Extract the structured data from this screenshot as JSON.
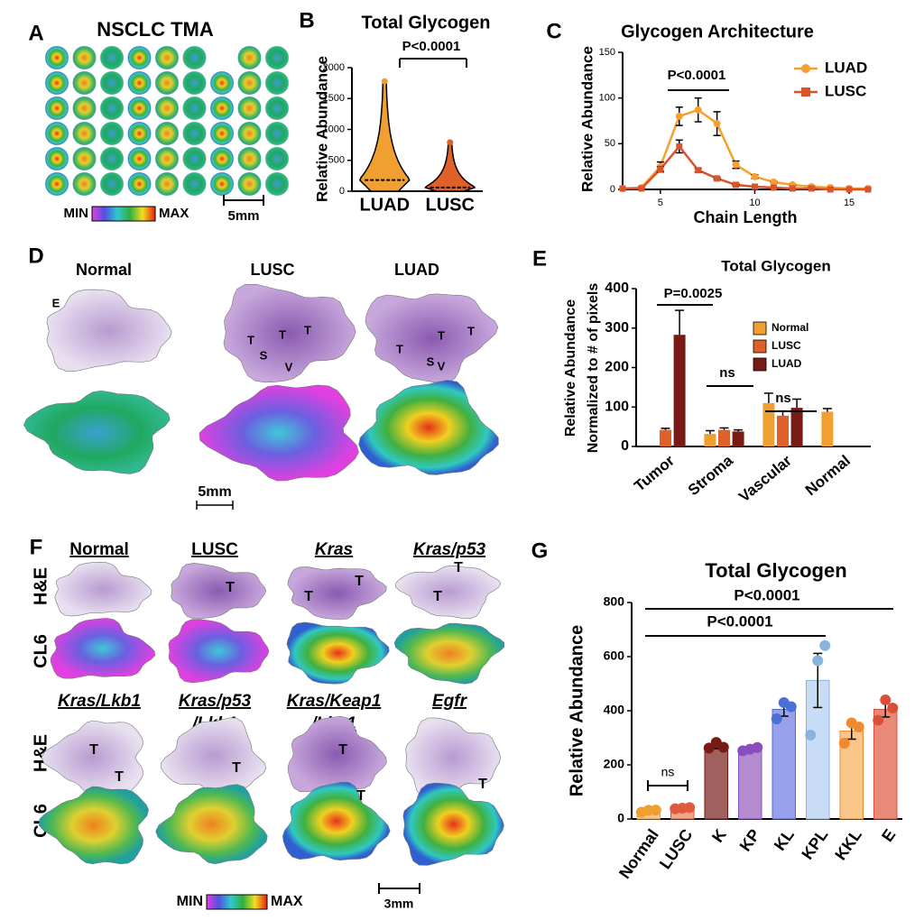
{
  "panel_a": {
    "letter": "A",
    "title": "NSCLC TMA",
    "colorbar_min": "MIN",
    "colorbar_max": "MAX",
    "scale": "5mm"
  },
  "panel_d": {
    "letter": "D",
    "columns": [
      "Normal",
      "LUSC",
      "LUAD"
    ],
    "tissue_labels": [
      "E",
      "T",
      "T",
      "T",
      "S",
      "V",
      "T",
      "T",
      "T",
      "S",
      "V"
    ],
    "scale": "5mm"
  },
  "panel_f": {
    "letter": "F",
    "columns": [
      [
        "Normal"
      ],
      [
        "LUSC"
      ],
      [
        "Kras"
      ],
      [
        "Kras/p53"
      ],
      [
        "Kras/Lkb1"
      ],
      [
        "Kras/p53",
        "/Lkb1"
      ],
      [
        "Kras/Keap1",
        "/Lkb1"
      ],
      [
        "Egfr"
      ]
    ],
    "rows": [
      "H&E",
      "CL6",
      "H&E",
      "CL6"
    ],
    "tissue_labels": [
      "T",
      "T",
      "T",
      "T",
      "T",
      "T",
      "T",
      "T",
      "T",
      "T",
      "T"
    ],
    "colorbar_min": "MIN",
    "colorbar_max": "MAX",
    "scale": "3mm"
  },
  "chart_data": [
    {
      "letter": "B",
      "type": "violin",
      "title": "Total Glycogen",
      "y_label": "Relative Abundance",
      "categories": [
        "LUAD",
        "LUSC"
      ],
      "colors": [
        "#f0a030",
        "#e0602a"
      ],
      "median": [
        180,
        60
      ],
      "max": [
        1780,
        790
      ],
      "ylim": [
        0,
        2000
      ],
      "yticks": [
        0,
        500,
        1000,
        1500,
        2000
      ],
      "annotations": [
        "P<0.0001"
      ]
    },
    {
      "letter": "C",
      "type": "line",
      "title": "Glycogen Architecture",
      "x_label": "Chain Length",
      "y_label": "Relative Abundance",
      "x": [
        3,
        4,
        5,
        6,
        7,
        8,
        9,
        10,
        11,
        12,
        13,
        14,
        15,
        16
      ],
      "series": [
        {
          "name": "LUAD",
          "color": "#f5a030",
          "values": [
            1,
            2,
            25,
            80,
            87,
            72,
            27,
            14,
            8,
            5,
            3,
            2,
            1,
            1
          ],
          "errors": [
            0,
            1,
            5,
            10,
            13,
            13,
            4,
            2,
            1,
            1,
            1,
            0,
            0,
            0
          ]
        },
        {
          "name": "LUSC",
          "color": "#d9542b",
          "values": [
            1,
            1,
            22,
            47,
            21,
            12,
            5,
            3,
            2,
            1,
            1,
            0,
            0,
            0
          ],
          "errors": [
            0,
            0,
            3,
            7,
            2,
            1,
            1,
            0,
            0,
            0,
            0,
            0,
            0,
            0
          ]
        }
      ],
      "xlim": [
        3,
        16
      ],
      "xticks": [
        5,
        10,
        15
      ],
      "ylim": [
        0,
        150
      ],
      "yticks": [
        0,
        50,
        100,
        150
      ],
      "legend": "upper right",
      "annotations": [
        "P<0.0001"
      ]
    },
    {
      "letter": "E",
      "type": "bar",
      "title": "Total Glycogen",
      "y_label": [
        "Relative Abundance",
        "Normalized to # of pixels"
      ],
      "categories": [
        "Tumor",
        "Stroma",
        "Vascular",
        "Normal"
      ],
      "series": [
        {
          "name": "Normal",
          "color": "#f0a030",
          "values": [
            null,
            32,
            110,
            88
          ],
          "errors": [
            null,
            8,
            25,
            8
          ]
        },
        {
          "name": "LUSC",
          "color": "#e0602a",
          "values": [
            42,
            42,
            78,
            null
          ],
          "errors": [
            4,
            5,
            12,
            null
          ]
        },
        {
          "name": "LUAD",
          "color": "#7a1a14",
          "values": [
            283,
            38,
            98,
            null
          ],
          "errors": [
            62,
            4,
            22,
            null
          ]
        }
      ],
      "ylim": [
        0,
        400
      ],
      "yticks": [
        0,
        100,
        200,
        300,
        400
      ],
      "legend": "upper right",
      "annotations": [
        "P=0.0025",
        "ns",
        "ns"
      ]
    },
    {
      "letter": "G",
      "type": "bar",
      "title": "Total Glycogen",
      "y_label": "Relative Abundance",
      "categories": [
        "Normal",
        "LUSC",
        "K",
        "KP",
        "KL",
        "KPL",
        "KKL",
        "E"
      ],
      "values": [
        30,
        40,
        270,
        258,
        405,
        512,
        325,
        405
      ],
      "errors": [
        5,
        4,
        10,
        8,
        25,
        100,
        30,
        28
      ],
      "points": [
        [
          25,
          32,
          33
        ],
        [
          38,
          40,
          42
        ],
        [
          262,
          283,
          265
        ],
        [
          252,
          258,
          264
        ],
        [
          370,
          430,
          415
        ],
        [
          310,
          585,
          641
        ],
        [
          280,
          355,
          340
        ],
        [
          365,
          440,
          410
        ]
      ],
      "colors": [
        "#f6c48e",
        "#f2a487",
        "#a0605e",
        "#b58bd0",
        "#97a0ea",
        "#c8dcf5",
        "#fbc68a",
        "#e98a78"
      ],
      "point_colors": [
        "#f0a030",
        "#e05a40",
        "#7a1a14",
        "#8a4cc0",
        "#4a70d8",
        "#8ab4e0",
        "#f08a30",
        "#d8503a"
      ],
      "ylim": [
        0,
        800
      ],
      "yticks": [
        0,
        200,
        400,
        600,
        800
      ],
      "annotations": [
        "P<0.0001",
        "P<0.0001",
        "ns"
      ]
    }
  ]
}
